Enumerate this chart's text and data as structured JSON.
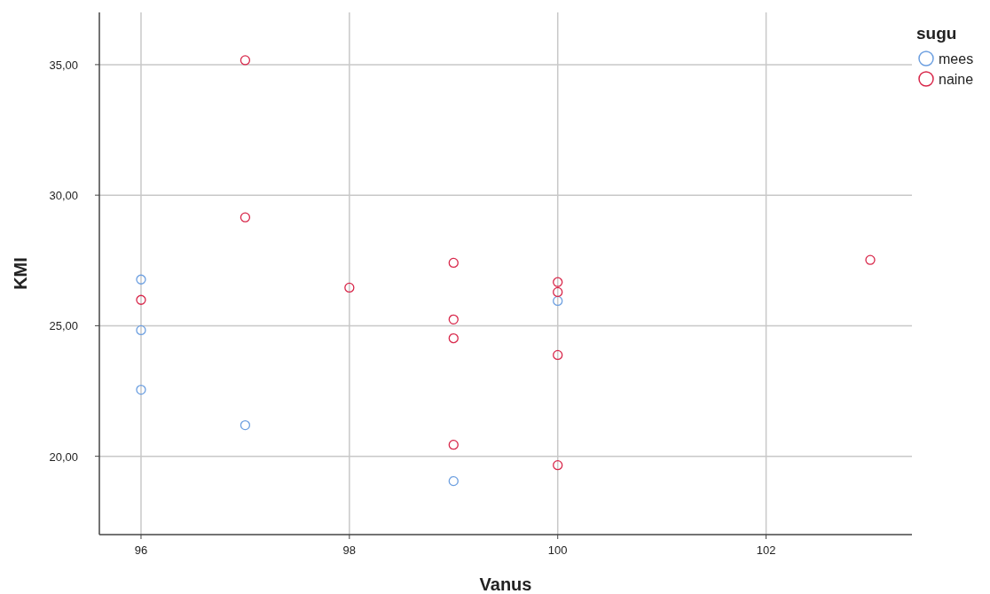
{
  "chart_data": {
    "type": "scatter",
    "xlabel": "Vanus",
    "ylabel": "KMI",
    "legend_title": "sugu",
    "legend": "top right",
    "grid": true,
    "marker": "circle",
    "xlim": [
      95.6,
      103.4
    ],
    "xticks": [
      96,
      98,
      100,
      102
    ],
    "ylim": [
      17,
      37
    ],
    "yticks": [
      {
        "value": 20,
        "label": "20,00"
      },
      {
        "value": 25,
        "label": "25,00"
      },
      {
        "value": 30,
        "label": "30,00"
      },
      {
        "value": 35,
        "label": "35,00"
      }
    ],
    "series": [
      {
        "name": "mees",
        "color": "#6c9fe0",
        "x": [
          96,
          96,
          96,
          97,
          99,
          100
        ],
        "values": [
          26.77,
          24.83,
          22.55,
          21.19,
          19.05,
          25.95
        ]
      },
      {
        "name": "naine",
        "color": "#d8274a",
        "x": [
          96,
          97,
          97,
          98,
          99,
          99,
          99,
          99,
          100,
          100,
          100,
          100,
          103
        ],
        "values": [
          25.99,
          35.17,
          29.15,
          26.46,
          27.41,
          25.24,
          24.52,
          20.44,
          26.67,
          26.29,
          23.88,
          19.66,
          27.52
        ]
      }
    ]
  }
}
